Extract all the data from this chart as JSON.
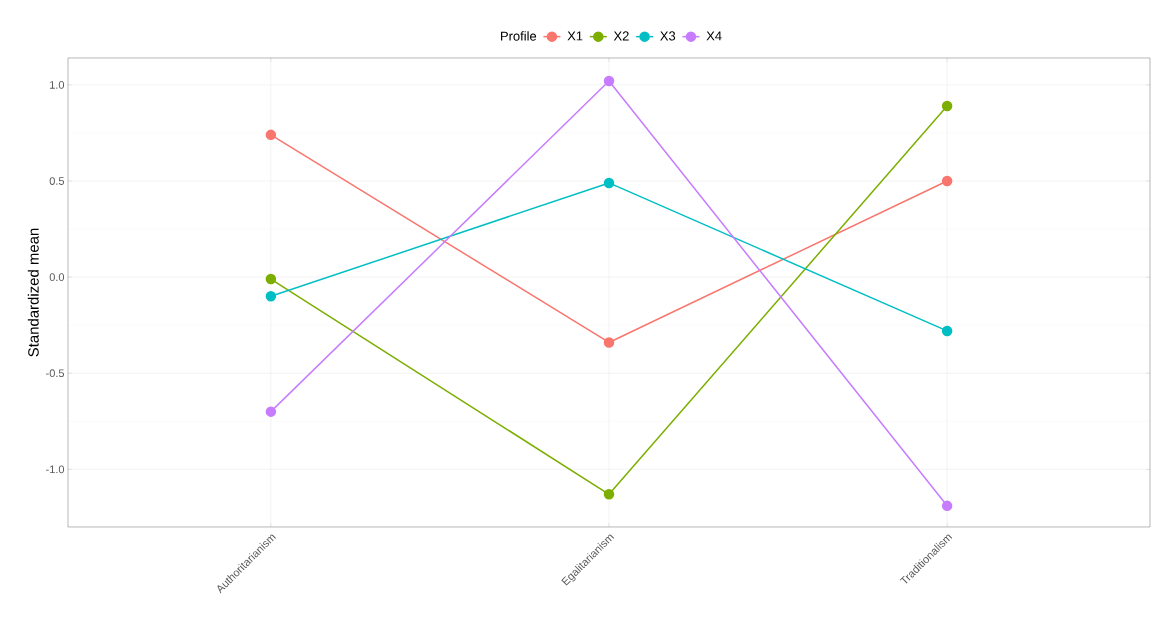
{
  "chart_data": {
    "type": "line",
    "ylabel": "Standardized mean",
    "legend_title": "Profile",
    "categories": [
      "Authoritarianism",
      "Egalitarianism",
      "Traditionalism"
    ],
    "series": [
      {
        "name": "X1",
        "color": "#f8766d",
        "values": [
          0.74,
          -0.34,
          0.5
        ]
      },
      {
        "name": "X2",
        "color": "#7cae00",
        "values": [
          -0.01,
          -1.13,
          0.89
        ]
      },
      {
        "name": "X3",
        "color": "#00bfc4",
        "values": [
          -0.1,
          0.49,
          -0.28
        ]
      },
      {
        "name": "X4",
        "color": "#c77cff",
        "values": [
          -0.7,
          1.02,
          -1.19
        ]
      }
    ],
    "ylim": [
      -1.3,
      1.14
    ],
    "yticks": [
      {
        "value": -1.0,
        "label": "-1.0"
      },
      -0.5,
      {
        "value": 0.0,
        "label": "0.0"
      },
      0.5,
      {
        "value": 1.0,
        "label": "1.0"
      }
    ],
    "grid": true,
    "legend": "top",
    "marker": "circle",
    "line_style": "solid"
  }
}
